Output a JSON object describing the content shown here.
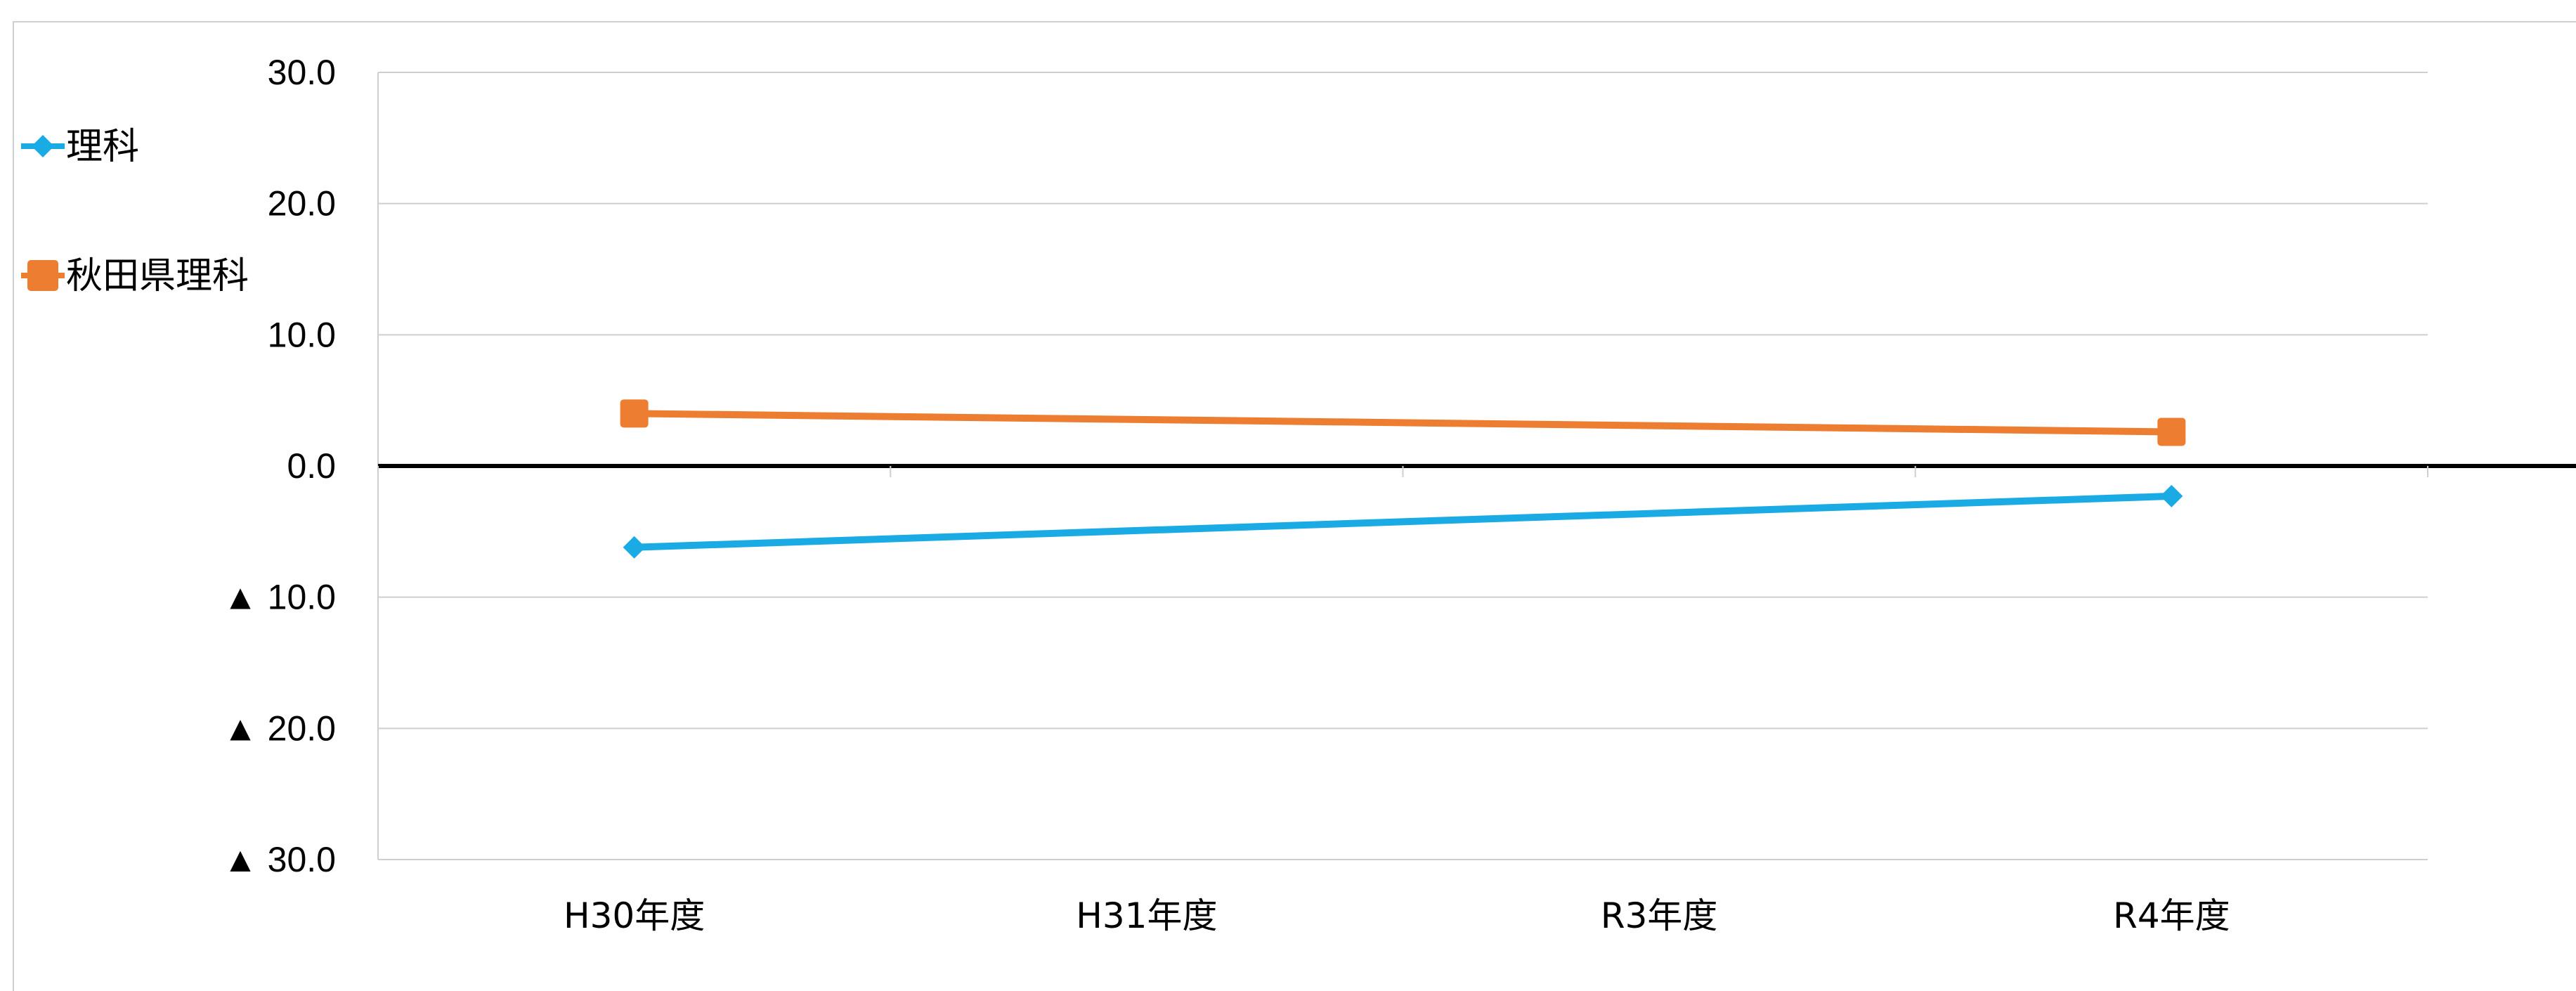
{
  "chart_data": {
    "type": "line",
    "categories": [
      "H30年度",
      "H31年度",
      "R3年度",
      "R4年度"
    ],
    "y_ticks": [
      {
        "value": 30,
        "label": "30.0"
      },
      {
        "value": 20,
        "label": "20.0"
      },
      {
        "value": 10,
        "label": "10.0"
      },
      {
        "value": 0,
        "label": "0.0"
      },
      {
        "value": -10,
        "label": "▲ 10.0"
      },
      {
        "value": -20,
        "label": "▲ 20.0"
      },
      {
        "value": -30,
        "label": "▲ 30.0"
      }
    ],
    "ylim": [
      -30,
      30
    ],
    "grid": true,
    "legend_position": "left",
    "series": [
      {
        "name": "理科",
        "color": "#1aabe4",
        "marker": "diamond",
        "points": [
          {
            "category": "H30年度",
            "y": -6.2
          },
          {
            "category": "R4年度",
            "y": -2.3
          }
        ]
      },
      {
        "name": "秋田県理科",
        "color": "#ed7d31",
        "marker": "square",
        "points": [
          {
            "category": "H30年度",
            "y": 4.0
          },
          {
            "category": "R4年度",
            "y": 2.6
          }
        ]
      }
    ]
  }
}
